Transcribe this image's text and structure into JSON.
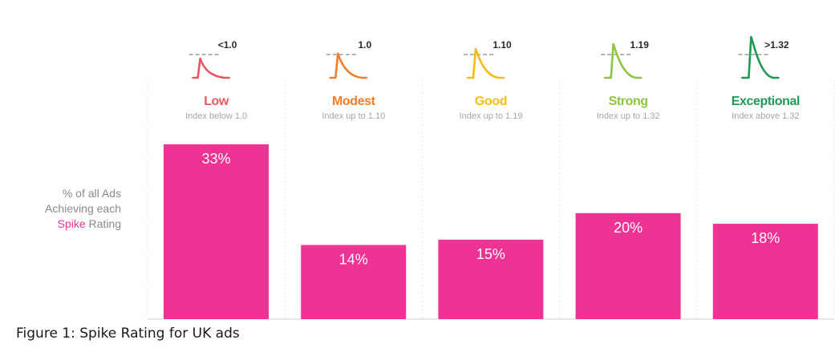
{
  "chart_data": {
    "type": "bar",
    "categories": [
      "Low",
      "Modest",
      "Good",
      "Strong",
      "Exceptional"
    ],
    "values": [
      33,
      14,
      15,
      20,
      18
    ],
    "value_labels": [
      "33%",
      "14%",
      "15%",
      "20%",
      "18%"
    ],
    "ylabel": [
      "% of all Ads",
      "Achieving each",
      "Spike",
      "Rating"
    ],
    "category_colors": [
      "#e8575f",
      "#f07d2a",
      "#f5bc13",
      "#8cc63f",
      "#1f9a55"
    ],
    "subtitles": [
      "Index below 1.0",
      "Index up to 1.10",
      "Index up to 1.19",
      "Index up to 1.32",
      "Index above 1.32"
    ],
    "thresholds": [
      "<1.0",
      "1.0",
      "1.10",
      "1.19",
      ">1.32"
    ],
    "bar_color": "#ee3395",
    "grid": false,
    "caption": "Figure 1: Spike Rating for UK ads"
  }
}
